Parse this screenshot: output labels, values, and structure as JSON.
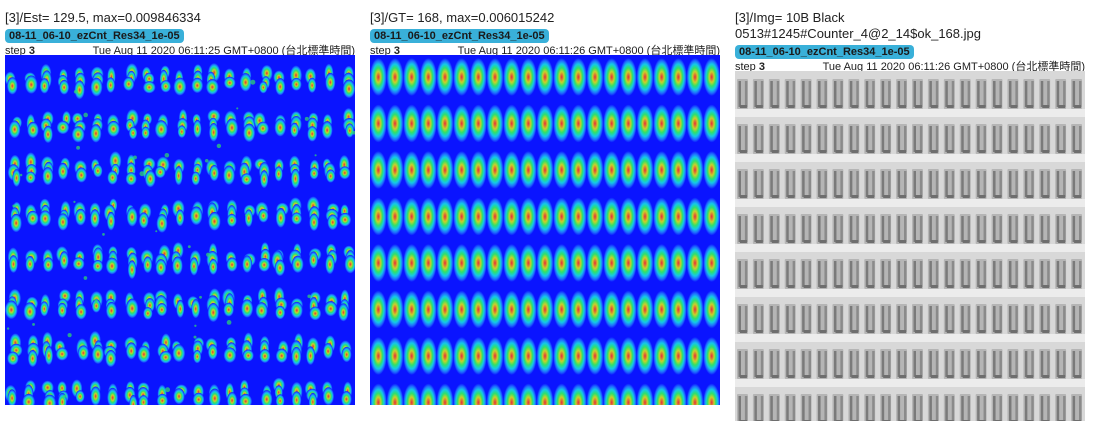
{
  "panels": [
    {
      "title": "[3]/Est= 129.5, max=0.009846334",
      "run": "08-11_06-10_ezCnt_Res34_1e-05",
      "step_label": "step",
      "step": "3",
      "timestamp": "Tue Aug 11 2020 06:11:25 GMT+0800 (台北標準時間)",
      "image": "estimated-density-heatmap"
    },
    {
      "title": "[3]/GT= 168, max=0.006015242",
      "run": "08-11_06-10_ezCnt_Res34_1e-05",
      "step_label": "step",
      "step": "3",
      "timestamp": "Tue Aug 11 2020 06:11:26 GMT+0800 (台北標準時間)",
      "image": "ground-truth-density-heatmap"
    },
    {
      "title": "[3]/Img= 10B Black",
      "title_line2": "0513#1245#Counter_4@2_14$ok_168.jpg",
      "run": "08-11_06-10_ezCnt_Res34_1e-05",
      "step_label": "step",
      "step": "3",
      "timestamp": "Tue Aug 11 2020 06:11:26 GMT+0800 (台北標準時間)",
      "image": "grayscale-component-photo"
    }
  ],
  "colors": {
    "badge": "#39b0d9",
    "heatmap_background": "#0a14ff",
    "heatmap_hot": "#e8283a",
    "photo_background": "#d8d8d8"
  }
}
